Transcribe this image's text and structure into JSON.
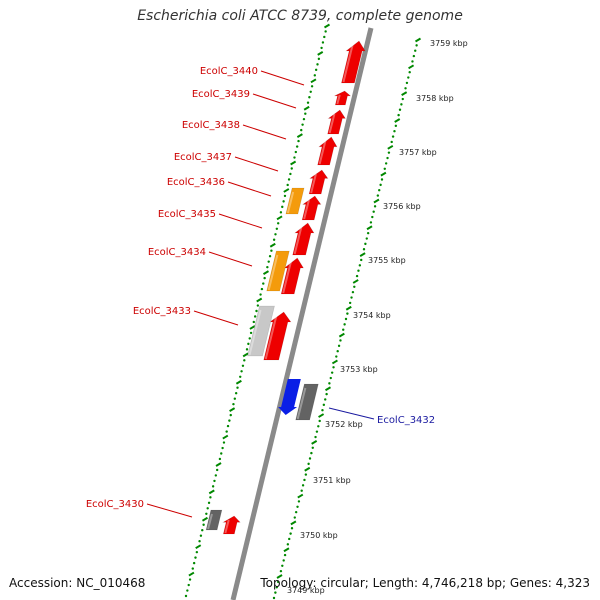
{
  "header": {
    "title": "Escherichia coli ATCC 8739, complete genome"
  },
  "footer": {
    "accession": "Accession: NC_010468",
    "topology": "Topology: circular; Length: 4,746,218 bp; Genes: 4,323"
  },
  "colors": {
    "backbone": "#7f7f7f",
    "forward_gene": "#ee0000",
    "orange_gene": "#f49b0c",
    "gray_gene": "#c8c8c8",
    "dark_gene": "#636363",
    "blue_gene": "#0a1fe6",
    "tick_green": "#008800",
    "label_red": "#cc0000",
    "label_blue": "#1a1aa0"
  },
  "map": {
    "ticks": [
      "3759 kbp",
      "3758 kbp",
      "3757 kbp",
      "3756 kbp",
      "3755 kbp",
      "3754 kbp",
      "3753 kbp",
      "3752 kbp",
      "3751 kbp",
      "3750 kbp",
      "3749 kbp"
    ],
    "gene_labels": [
      {
        "name": "EcolC_3440",
        "color": "red"
      },
      {
        "name": "EcolC_3439",
        "color": "red"
      },
      {
        "name": "EcolC_3438",
        "color": "red"
      },
      {
        "name": "EcolC_3437",
        "color": "red"
      },
      {
        "name": "EcolC_3436",
        "color": "red"
      },
      {
        "name": "EcolC_3435",
        "color": "red"
      },
      {
        "name": "EcolC_3434",
        "color": "red"
      },
      {
        "name": "EcolC_3433",
        "color": "red"
      },
      {
        "name": "EcolC_3432",
        "color": "blue"
      },
      {
        "name": "EcolC_3430",
        "color": "red"
      }
    ]
  }
}
